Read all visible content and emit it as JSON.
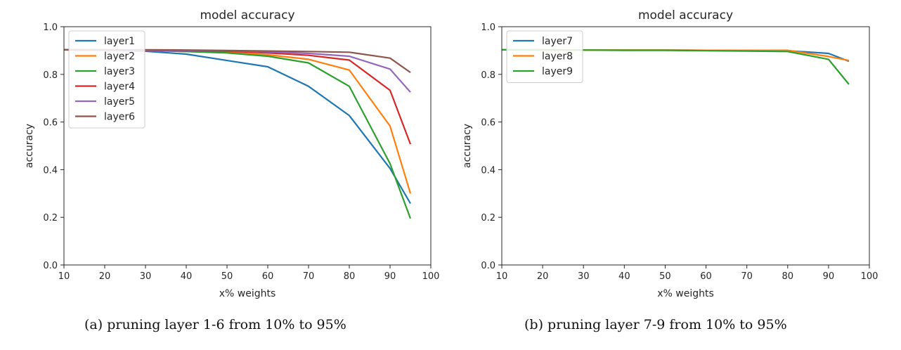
{
  "chart_data": [
    {
      "type": "line",
      "title": "model accuracy",
      "xlabel": "x% weights",
      "ylabel": "accuracy",
      "xlim": [
        10,
        100
      ],
      "ylim": [
        0.0,
        1.0
      ],
      "xticks": [
        10,
        20,
        30,
        40,
        50,
        60,
        70,
        80,
        90,
        100
      ],
      "yticks": [
        0.0,
        0.2,
        0.4,
        0.6,
        0.8,
        1.0
      ],
      "xtick_labels": [
        "10",
        "20",
        "30",
        "40",
        "50",
        "60",
        "70",
        "80",
        "90",
        "100"
      ],
      "ytick_labels": [
        "0.0",
        "0.2",
        "0.4",
        "0.6",
        "0.8",
        "1.0"
      ],
      "grid": false,
      "legend": "top-left",
      "x": [
        10,
        20,
        30,
        40,
        50,
        60,
        70,
        80,
        90,
        95
      ],
      "series": [
        {
          "name": "layer1",
          "color": "#1f77b4",
          "values": [
            0.903,
            0.902,
            0.897,
            0.885,
            0.858,
            0.832,
            0.75,
            0.627,
            0.405,
            0.258
          ]
        },
        {
          "name": "layer2",
          "color": "#ff7f0e",
          "values": [
            0.903,
            0.903,
            0.901,
            0.896,
            0.892,
            0.882,
            0.863,
            0.818,
            0.583,
            0.3
          ]
        },
        {
          "name": "layer3",
          "color": "#2ca02c",
          "values": [
            0.903,
            0.902,
            0.901,
            0.896,
            0.89,
            0.876,
            0.848,
            0.75,
            0.425,
            0.195
          ]
        },
        {
          "name": "layer4",
          "color": "#d62728",
          "values": [
            0.903,
            0.902,
            0.901,
            0.899,
            0.897,
            0.89,
            0.88,
            0.86,
            0.733,
            0.507
          ]
        },
        {
          "name": "layer5",
          "color": "#9467bd",
          "values": [
            0.903,
            0.902,
            0.901,
            0.9,
            0.899,
            0.895,
            0.888,
            0.876,
            0.822,
            0.725
          ]
        },
        {
          "name": "layer6",
          "color": "#8c564b",
          "values": [
            0.903,
            0.903,
            0.903,
            0.902,
            0.9,
            0.898,
            0.896,
            0.893,
            0.868,
            0.808
          ]
        }
      ],
      "caption": "(a) pruning layer 1-6 from 10% to 95%"
    },
    {
      "type": "line",
      "title": "model accuracy",
      "xlabel": "x% weights",
      "ylabel": "accuracy",
      "xlim": [
        10,
        100
      ],
      "ylim": [
        0.0,
        1.0
      ],
      "xticks": [
        10,
        20,
        30,
        40,
        50,
        60,
        70,
        80,
        90,
        100
      ],
      "yticks": [
        0.0,
        0.2,
        0.4,
        0.6,
        0.8,
        1.0
      ],
      "xtick_labels": [
        "10",
        "20",
        "30",
        "40",
        "50",
        "60",
        "70",
        "80",
        "90",
        "100"
      ],
      "ytick_labels": [
        "0.0",
        "0.2",
        "0.4",
        "0.6",
        "0.8",
        "1.0"
      ],
      "grid": false,
      "legend": "top-left",
      "x": [
        10,
        20,
        30,
        40,
        50,
        60,
        70,
        80,
        90,
        95
      ],
      "series": [
        {
          "name": "layer7",
          "color": "#1f77b4",
          "values": [
            0.903,
            0.903,
            0.902,
            0.902,
            0.902,
            0.901,
            0.9,
            0.899,
            0.888,
            0.855
          ]
        },
        {
          "name": "layer8",
          "color": "#ff7f0e",
          "values": [
            0.903,
            0.903,
            0.902,
            0.902,
            0.902,
            0.901,
            0.901,
            0.901,
            0.875,
            0.858
          ]
        },
        {
          "name": "layer9",
          "color": "#2ca02c",
          "values": [
            0.903,
            0.902,
            0.902,
            0.901,
            0.901,
            0.899,
            0.898,
            0.896,
            0.863,
            0.758
          ]
        }
      ],
      "caption": "(b) pruning layer 7-9 from 10% to 95%"
    }
  ]
}
